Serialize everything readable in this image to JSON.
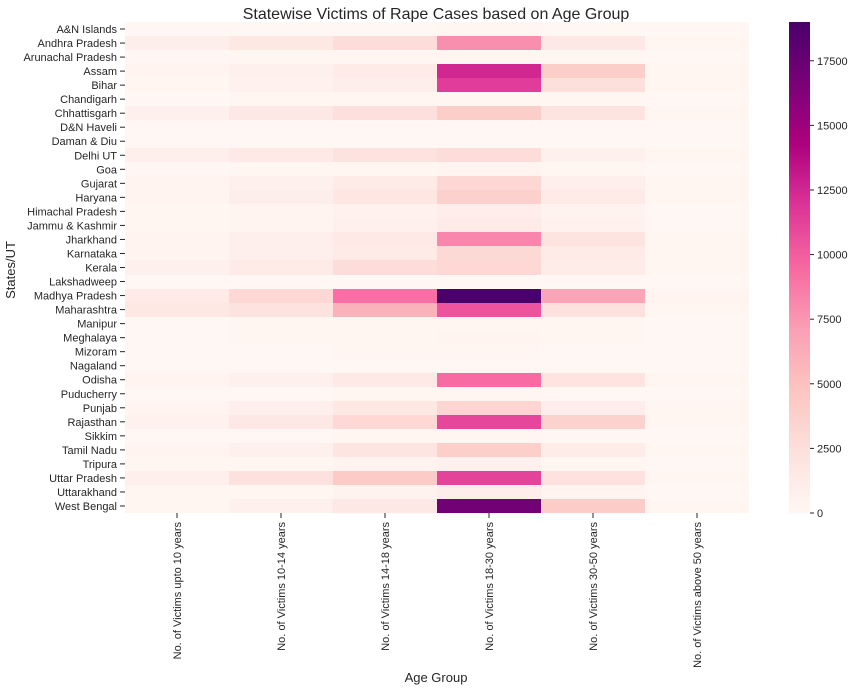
{
  "chart_data": {
    "type": "heatmap",
    "title": "Statewise Victims of Rape Cases based on Age Group",
    "xlabel": "Age Group",
    "ylabel": "States/UT",
    "colormap": "RdPu",
    "colors": [
      "#fff7f3",
      "#fde0dd",
      "#fcc5c0",
      "#fa9fb5",
      "#f768a1",
      "#dd3497",
      "#ae017e",
      "#7a0177",
      "#49006a"
    ],
    "vmin": 0,
    "vmax": 19000,
    "colorbar_ticks": [
      0,
      2500,
      5000,
      7500,
      10000,
      12500,
      15000,
      17500
    ],
    "x_categories": [
      "No. of Victims upto 10 years",
      "No. of Victims 10-14 years",
      "No. of Victims 14-18 years",
      "No. of Victims 18-30 years",
      "No. of Victims 30-50 years",
      "No. of Victims above 50 years"
    ],
    "y_categories": [
      "A&N Islands",
      "Andhra Pradesh",
      "Arunachal Pradesh",
      "Assam",
      "Bihar",
      "Chandigarh",
      "Chhattisgarh",
      "D&N Haveli",
      "Daman & Diu",
      "Delhi UT",
      "Goa",
      "Gujarat",
      "Haryana",
      "Himachal Pradesh",
      "Jammu & Kashmir",
      "Jharkhand",
      "Karnataka",
      "Kerala",
      "Lakshadweep",
      "Madhya Pradesh",
      "Maharashtra",
      "Manipur",
      "Meghalaya",
      "Mizoram",
      "Nagaland",
      "Odisha",
      "Puducherry",
      "Punjab",
      "Rajasthan",
      "Sikkim",
      "Tamil Nadu",
      "Tripura",
      "Uttar Pradesh",
      "Uttarakhand",
      "West Bengal"
    ],
    "values": [
      [
        20,
        25,
        40,
        100,
        50,
        5
      ],
      [
        900,
        1600,
        2600,
        7800,
        1500,
        150
      ],
      [
        40,
        60,
        100,
        250,
        80,
        10
      ],
      [
        300,
        700,
        1200,
        12500,
        4000,
        200
      ],
      [
        200,
        500,
        900,
        11500,
        2500,
        150
      ],
      [
        40,
        60,
        100,
        200,
        80,
        10
      ],
      [
        700,
        1500,
        2400,
        4000,
        2000,
        150
      ],
      [
        10,
        15,
        30,
        50,
        20,
        5
      ],
      [
        5,
        10,
        20,
        40,
        10,
        3
      ],
      [
        800,
        1400,
        2100,
        2600,
        600,
        100
      ],
      [
        50,
        90,
        150,
        300,
        100,
        10
      ],
      [
        300,
        700,
        1300,
        3200,
        800,
        100
      ],
      [
        300,
        900,
        1700,
        3700,
        1200,
        100
      ],
      [
        150,
        300,
        500,
        1000,
        400,
        50
      ],
      [
        100,
        300,
        600,
        1300,
        500,
        50
      ],
      [
        300,
        800,
        1400,
        8200,
        2000,
        150
      ],
      [
        300,
        800,
        1300,
        3000,
        1200,
        100
      ],
      [
        600,
        1200,
        2600,
        3100,
        1100,
        150
      ],
      [
        2,
        3,
        5,
        10,
        5,
        1
      ],
      [
        1300,
        3100,
        9200,
        19000,
        6800,
        300
      ],
      [
        1600,
        2100,
        5900,
        10400,
        2300,
        200
      ],
      [
        30,
        60,
        100,
        200,
        80,
        10
      ],
      [
        50,
        100,
        200,
        300,
        100,
        10
      ],
      [
        30,
        50,
        80,
        150,
        50,
        5
      ],
      [
        10,
        15,
        30,
        50,
        20,
        3
      ],
      [
        300,
        700,
        1400,
        9400,
        2000,
        150
      ],
      [
        20,
        40,
        60,
        120,
        40,
        5
      ],
      [
        300,
        800,
        1600,
        3300,
        1000,
        100
      ],
      [
        500,
        1500,
        3100,
        11000,
        3600,
        200
      ],
      [
        20,
        40,
        60,
        120,
        40,
        5
      ],
      [
        300,
        700,
        1800,
        3900,
        1100,
        100
      ],
      [
        100,
        200,
        400,
        700,
        200,
        30
      ],
      [
        800,
        2300,
        4200,
        11200,
        2200,
        200
      ],
      [
        100,
        200,
        400,
        900,
        300,
        30
      ],
      [
        200,
        700,
        1500,
        17000,
        4100,
        200
      ]
    ],
    "grid": false,
    "legend": "colorbar-right"
  }
}
